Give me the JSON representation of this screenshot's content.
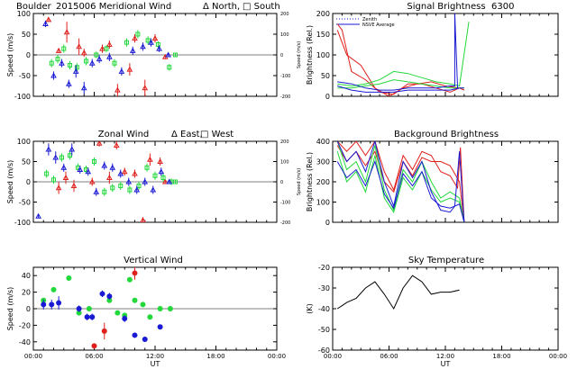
{
  "header": {
    "site": "Boulder",
    "date": "2015006"
  },
  "colors": {
    "red": "#e0201c",
    "green": "#22d83a",
    "blue": "#1a1ad4",
    "axis": "#000000"
  },
  "chart_data": [
    {
      "id": "meridional",
      "type": "scatter",
      "title": "Meridional Wind",
      "legend": [
        "Δ North,",
        "□ South"
      ],
      "ylabel": "Speed (m/s)",
      "ylabel_right": "Speed (m/s)",
      "ylim": [
        -100,
        100
      ],
      "y_ticks": [
        -100,
        -50,
        0,
        50,
        100
      ],
      "ylim_right": [
        -200,
        200
      ],
      "y_ticks_right": [
        "-200",
        "-100",
        "0",
        "100",
        "200"
      ],
      "xlim": [
        0,
        24
      ],
      "x_ticks": [
        0,
        6,
        12,
        18,
        24
      ],
      "x_tick_labels": [],
      "series": [
        {
          "color": "red",
          "x": [
            1.5,
            2.5,
            3.3,
            4.5,
            5.0,
            6.8,
            7.5,
            8.3,
            9.5,
            10.0,
            11.0,
            12.0,
            13.0
          ],
          "y": [
            85,
            10,
            55,
            20,
            5,
            15,
            25,
            -85,
            -35,
            40,
            -80,
            40,
            -5
          ],
          "err": [
            5,
            5,
            25,
            20,
            10,
            10,
            10,
            15,
            15,
            10,
            20,
            10,
            5
          ]
        },
        {
          "color": "green",
          "x": [
            1.8,
            2.4,
            3.0,
            3.6,
            4.3,
            5.2,
            6.2,
            7.2,
            8.0,
            9.2,
            10.3,
            11.3,
            12.3,
            13.4,
            14.0
          ],
          "y": [
            -20,
            -10,
            15,
            -25,
            -30,
            -15,
            0,
            15,
            -20,
            30,
            50,
            35,
            25,
            -30,
            0
          ],
          "err": [
            10,
            10,
            10,
            10,
            10,
            10,
            8,
            8,
            10,
            10,
            10,
            10,
            8,
            8,
            5
          ]
        },
        {
          "color": "blue",
          "x": [
            1.2,
            2.0,
            2.8,
            3.5,
            4.2,
            5.0,
            5.8,
            6.5,
            7.5,
            8.7,
            9.8,
            10.8,
            11.6,
            12.4,
            13.3
          ],
          "y": [
            75,
            -50,
            -20,
            -70,
            -40,
            -80,
            -20,
            -10,
            -5,
            -40,
            10,
            20,
            30,
            15,
            0
          ],
          "err": [
            8,
            10,
            10,
            10,
            15,
            15,
            10,
            10,
            10,
            10,
            10,
            10,
            10,
            8,
            5
          ]
        }
      ]
    },
    {
      "id": "signal",
      "type": "line",
      "title": "Signal Brightness",
      "subtitle": "6300",
      "legend": [
        "Zenith",
        "NSVE Average"
      ],
      "ylabel": "Brightness (Rel.)",
      "ylim": [
        0,
        200
      ],
      "y_ticks": [
        0,
        50,
        100,
        150,
        200
      ],
      "xlim": [
        0,
        24
      ],
      "x_ticks": [
        0,
        6,
        12,
        18,
        24
      ],
      "x_tick_labels": [],
      "series": [
        {
          "color": "red",
          "x": [
            0.5,
            1.0,
            2.0,
            3.5,
            5.0,
            6.5,
            8.0,
            9.5,
            11.0,
            12.5,
            13.5,
            14.0
          ],
          "y": [
            175,
            160,
            60,
            40,
            10,
            5,
            30,
            30,
            20,
            10,
            20,
            15
          ]
        },
        {
          "color": "red",
          "x": [
            0.5,
            1.5,
            3.0,
            4.5,
            6.0,
            7.5,
            9.0,
            10.5,
            12.0,
            13.5,
            14.0
          ],
          "y": [
            160,
            100,
            75,
            20,
            0,
            20,
            30,
            35,
            25,
            20,
            15
          ]
        },
        {
          "color": "green",
          "x": [
            0.5,
            2.0,
            3.5,
            5.0,
            6.5,
            8.0,
            9.5,
            11.0,
            12.5,
            13.5,
            14.5
          ],
          "y": [
            30,
            25,
            30,
            40,
            60,
            55,
            45,
            35,
            30,
            25,
            180
          ]
        },
        {
          "color": "green",
          "x": [
            0.5,
            2.0,
            3.5,
            5.0,
            6.5,
            8.0,
            9.5,
            11.0,
            12.5,
            14.0
          ],
          "y": [
            20,
            20,
            25,
            30,
            40,
            35,
            30,
            25,
            20,
            20
          ]
        },
        {
          "color": "blue",
          "x": [
            0.5,
            2.0,
            3.5,
            5.0,
            6.5,
            8.0,
            9.5,
            11.0,
            12.5,
            13.5,
            14.0
          ],
          "y": [
            25,
            15,
            10,
            10,
            10,
            15,
            15,
            15,
            15,
            20,
            20
          ]
        },
        {
          "color": "blue",
          "x": [
            0.5,
            2.0,
            3.5,
            5.0,
            6.5,
            8.0,
            9.5,
            11.0,
            12.5,
            13.0,
            13.0,
            13.3
          ],
          "y": [
            35,
            30,
            20,
            15,
            15,
            20,
            20,
            20,
            25,
            25,
            200,
            20
          ]
        }
      ]
    },
    {
      "id": "zonal",
      "type": "scatter",
      "title": "Zonal Wind",
      "legend": [
        "Δ East,",
        "□ West"
      ],
      "ylabel": "Speed (m/s)",
      "ylabel_right": "Speed (m/s)",
      "ylim": [
        -100,
        100
      ],
      "y_ticks": [
        -100,
        -50,
        0,
        50,
        100
      ],
      "ylim_right": [
        -200,
        200
      ],
      "y_ticks_right": [
        "-200",
        "-100",
        "0",
        "100",
        "200"
      ],
      "xlim": [
        0,
        24
      ],
      "x_ticks": [
        0,
        6,
        12,
        18,
        24
      ],
      "x_tick_labels": [],
      "series": [
        {
          "color": "red",
          "x": [
            2.5,
            3.2,
            4.0,
            5.8,
            6.5,
            7.5,
            8.2,
            9.0,
            10.0,
            10.8,
            11.5,
            12.5,
            13.0
          ],
          "y": [
            -15,
            10,
            -10,
            0,
            95,
            10,
            90,
            25,
            20,
            -95,
            55,
            50,
            0
          ],
          "err": [
            15,
            15,
            15,
            10,
            8,
            15,
            10,
            10,
            10,
            8,
            15,
            10,
            5
          ]
        },
        {
          "color": "green",
          "x": [
            1.3,
            2.0,
            2.8,
            3.6,
            4.4,
            5.2,
            6.0,
            7.0,
            7.8,
            8.6,
            9.5,
            10.4,
            11.2,
            12.0,
            12.8,
            13.6,
            14.0
          ],
          "y": [
            20,
            5,
            60,
            65,
            35,
            30,
            50,
            -25,
            -15,
            -10,
            -20,
            -10,
            35,
            15,
            10,
            0,
            0
          ],
          "err": [
            10,
            10,
            10,
            10,
            10,
            10,
            10,
            10,
            10,
            10,
            10,
            10,
            10,
            10,
            10,
            8,
            5
          ]
        },
        {
          "color": "blue",
          "x": [
            0.5,
            1.5,
            2.2,
            3.0,
            3.8,
            4.6,
            5.4,
            6.2,
            7.0,
            7.8,
            8.6,
            9.4,
            10.2,
            11.0,
            11.8,
            12.6,
            13.4
          ],
          "y": [
            -85,
            80,
            60,
            35,
            80,
            30,
            25,
            -25,
            40,
            35,
            20,
            0,
            -20,
            0,
            -20,
            25,
            0
          ],
          "err": [
            5,
            15,
            15,
            10,
            15,
            10,
            10,
            10,
            10,
            10,
            10,
            10,
            10,
            10,
            10,
            10,
            5
          ]
        }
      ]
    },
    {
      "id": "background",
      "type": "line",
      "title": "Background Brightness",
      "ylabel": "Brightness (Rel.)",
      "ylim": [
        0,
        400
      ],
      "y_ticks": [
        0,
        100,
        200,
        300,
        400
      ],
      "xlim": [
        0,
        24
      ],
      "x_ticks": [
        0,
        6,
        12,
        18,
        24
      ],
      "x_tick_labels": [],
      "series": [
        {
          "color": "red",
          "x": [
            0.5,
            1.5,
            2.5,
            3.5,
            4.5,
            5.5,
            6.5,
            7.5,
            8.5,
            9.5,
            10.5,
            11.5,
            12.5,
            13.3,
            13.6,
            14.0
          ],
          "y": [
            400,
            350,
            400,
            330,
            400,
            250,
            160,
            330,
            260,
            350,
            330,
            250,
            230,
            170,
            370,
            0
          ]
        },
        {
          "color": "red",
          "x": [
            0.5,
            1.5,
            2.5,
            3.5,
            4.5,
            5.5,
            6.5,
            7.5,
            8.5,
            9.5,
            10.5,
            11.5,
            12.5,
            13.5,
            14.0
          ],
          "y": [
            380,
            300,
            350,
            280,
            350,
            200,
            150,
            300,
            230,
            320,
            300,
            300,
            280,
            200,
            0
          ]
        },
        {
          "color": "green",
          "x": [
            0.5,
            1.5,
            2.5,
            3.5,
            4.5,
            5.5,
            6.5,
            7.5,
            8.5,
            9.5,
            10.5,
            11.5,
            12.5,
            13.5,
            14.0
          ],
          "y": [
            400,
            260,
            300,
            200,
            380,
            160,
            60,
            260,
            200,
            300,
            200,
            120,
            150,
            120,
            0
          ]
        },
        {
          "color": "green",
          "x": [
            0.5,
            1.5,
            2.5,
            3.5,
            4.5,
            5.5,
            6.5,
            7.5,
            8.5,
            9.5,
            10.5,
            11.5,
            12.5,
            13.5,
            14.0
          ],
          "y": [
            350,
            200,
            250,
            150,
            330,
            120,
            50,
            220,
            160,
            250,
            160,
            100,
            120,
            100,
            0
          ]
        },
        {
          "color": "blue",
          "x": [
            0.5,
            1.5,
            2.5,
            3.5,
            4.5,
            5.5,
            6.5,
            7.5,
            8.5,
            9.5,
            10.5,
            11.5,
            12.5,
            13.0,
            13.5,
            14.0
          ],
          "y": [
            400,
            300,
            350,
            250,
            400,
            200,
            80,
            300,
            220,
            300,
            150,
            60,
            50,
            80,
            350,
            0
          ]
        },
        {
          "color": "blue",
          "x": [
            0.5,
            1.5,
            2.5,
            3.5,
            4.5,
            5.5,
            6.5,
            7.5,
            8.5,
            9.5,
            10.5,
            11.5,
            12.5,
            13.5,
            14.0
          ],
          "y": [
            300,
            220,
            260,
            180,
            300,
            140,
            70,
            240,
            180,
            250,
            120,
            80,
            70,
            90,
            0
          ]
        }
      ]
    },
    {
      "id": "vertical",
      "type": "scatter",
      "title": "Vertical Wind",
      "ylabel": "Speed (m/s)",
      "ylim": [
        -50,
        50
      ],
      "y_ticks": [
        -40,
        -20,
        0,
        20,
        40
      ],
      "xlim": [
        0,
        24
      ],
      "x_ticks": [
        0,
        6,
        12,
        18,
        24
      ],
      "x_tick_labels": [
        "00:00",
        "06:00",
        "12:00",
        "18:00",
        "00:00"
      ],
      "xlabel": "UT",
      "series": [
        {
          "color": "red",
          "x": [
            6.0,
            7.0,
            10.0
          ],
          "y": [
            -45,
            -27,
            43
          ],
          "err": [
            3,
            10,
            8
          ]
        },
        {
          "color": "green",
          "x": [
            1.0,
            2.0,
            3.5,
            4.5,
            5.5,
            7.5,
            8.3,
            9.0,
            9.5,
            10.0,
            10.8,
            11.5,
            12.5,
            13.5
          ],
          "y": [
            10,
            23,
            37,
            -5,
            0,
            10,
            -5,
            -8,
            35,
            10,
            5,
            -10,
            0,
            0
          ],
          "err": [
            3,
            3,
            3,
            3,
            3,
            3,
            3,
            3,
            3,
            3,
            3,
            3,
            3,
            3
          ]
        },
        {
          "color": "blue",
          "x": [
            1.0,
            1.8,
            2.5,
            4.5,
            5.3,
            5.8,
            6.8,
            7.5,
            9.0,
            10.0,
            11.0,
            12.5
          ],
          "y": [
            5,
            5,
            7,
            0,
            -10,
            -10,
            18,
            15,
            -12,
            -32,
            -37,
            -22
          ],
          "err": [
            6,
            6,
            8,
            4,
            4,
            4,
            4,
            4,
            4,
            3,
            3,
            3
          ]
        }
      ]
    },
    {
      "id": "skytemp",
      "type": "line",
      "title": "Sky Temperature",
      "ylabel": "(K)",
      "ylim": [
        -60,
        -20
      ],
      "y_ticks": [
        -60,
        -50,
        -40,
        -30,
        -20
      ],
      "xlim": [
        0,
        24
      ],
      "x_ticks": [
        0,
        6,
        12,
        18,
        24
      ],
      "x_tick_labels": [
        "00:00",
        "06:00",
        "12:00",
        "18:00",
        "00:00"
      ],
      "xlabel": "UT",
      "series": [
        {
          "color": "axis",
          "x": [
            0.5,
            1.5,
            2.5,
            3.5,
            4.5,
            5.5,
            6.5,
            7.5,
            8.5,
            9.5,
            10.5,
            11.5,
            12.5,
            13.5
          ],
          "y": [
            -40,
            -37,
            -35,
            -30,
            -27,
            -33,
            -40,
            -30,
            -24,
            -27,
            -33,
            -32,
            -32,
            -31
          ]
        }
      ]
    }
  ]
}
